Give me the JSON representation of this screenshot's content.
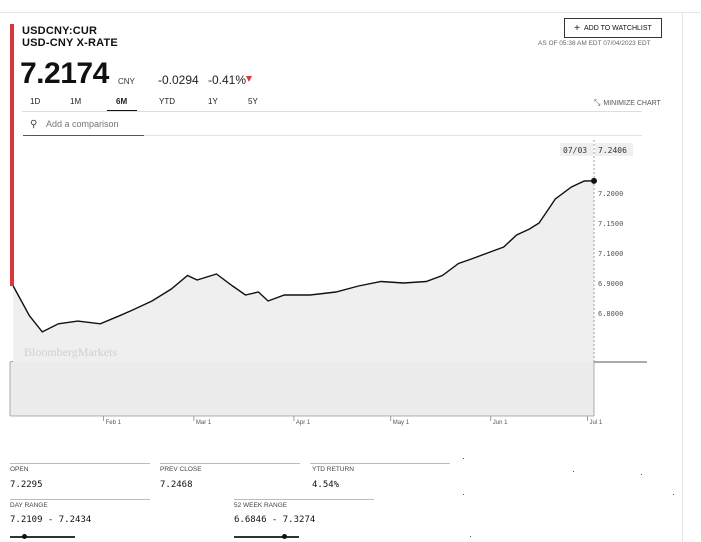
{
  "header": {
    "ticker": "USDCNY:CUR",
    "name": "USD-CNY X-RATE",
    "price": "7.2174",
    "currency": "CNY",
    "change": "-0.0294",
    "change_pct": "-0.41%",
    "change_color": "#d9373a",
    "watchlist_label": "ADD TO WATCHLIST",
    "as_of": "AS OF 05:38 AM EDT 07/04/2023 EDT"
  },
  "tabs": [
    {
      "label": "1D"
    },
    {
      "label": "1M"
    },
    {
      "label": "6M",
      "active": true
    },
    {
      "label": "YTD"
    },
    {
      "label": "1Y"
    },
    {
      "label": "5Y"
    }
  ],
  "minimize_label": "MINIMIZE CHART",
  "search": {
    "placeholder": "Add a comparison"
  },
  "chart_data": {
    "type": "line",
    "watermark": "BloombergMarkets",
    "cursor_date": "07/03",
    "cursor_value": "7.2406",
    "y_ticks": [
      "7.2000",
      "7.1500",
      "7.1000",
      "6.9000",
      "6.8000"
    ],
    "x_ticks": [
      "Feb 1",
      "Mar 1",
      "Apr 1",
      "May 1",
      "Jun 1",
      "Jul 1"
    ],
    "series": [
      {
        "values": [
          [
            "2023-01-04",
            6.89
          ],
          [
            "2023-01-09",
            6.79
          ],
          [
            "2023-01-13",
            6.73
          ],
          [
            "2023-01-18",
            6.76
          ],
          [
            "2023-01-24",
            6.77
          ],
          [
            "2023-01-31",
            6.76
          ],
          [
            "2023-02-06",
            6.79
          ],
          [
            "2023-02-10",
            6.81
          ],
          [
            "2023-02-16",
            6.84
          ],
          [
            "2023-02-22",
            6.88
          ],
          [
            "2023-02-27",
            6.95
          ],
          [
            "2023-03-02",
            6.92
          ],
          [
            "2023-03-08",
            6.96
          ],
          [
            "2023-03-13",
            6.89
          ],
          [
            "2023-03-17",
            6.86
          ],
          [
            "2023-03-21",
            6.87
          ],
          [
            "2023-03-24",
            6.84
          ],
          [
            "2023-03-29",
            6.86
          ],
          [
            "2023-04-06",
            6.86
          ],
          [
            "2023-04-14",
            6.87
          ],
          [
            "2023-04-21",
            6.89
          ],
          [
            "2023-04-28",
            6.91
          ],
          [
            "2023-05-05",
            6.9
          ],
          [
            "2023-05-12",
            6.91
          ],
          [
            "2023-05-17",
            6.95
          ],
          [
            "2023-05-22",
            7.03
          ],
          [
            "2023-05-26",
            7.06
          ],
          [
            "2023-05-31",
            7.1
          ],
          [
            "2023-06-05",
            7.11
          ],
          [
            "2023-06-09",
            7.13
          ],
          [
            "2023-06-13",
            7.14
          ],
          [
            "2023-06-16",
            7.15
          ],
          [
            "2023-06-21",
            7.19
          ],
          [
            "2023-06-26",
            7.22
          ],
          [
            "2023-06-30",
            7.24
          ],
          [
            "2023-07-03",
            7.2406
          ]
        ]
      }
    ],
    "grid": false
  },
  "stats": {
    "open": {
      "label": "OPEN",
      "value": "7.2295"
    },
    "prev_close": {
      "label": "PREV CLOSE",
      "value": "7.2468"
    },
    "ytd_return": {
      "label": "YTD RETURN",
      "value": "4.54%"
    },
    "day_range": {
      "label": "DAY RANGE",
      "value": "7.2109 - 7.2434",
      "position": 0.22
    },
    "week52_range": {
      "label": "52 WEEK RANGE",
      "value": "6.6846 - 7.3274",
      "position": 0.78
    }
  }
}
